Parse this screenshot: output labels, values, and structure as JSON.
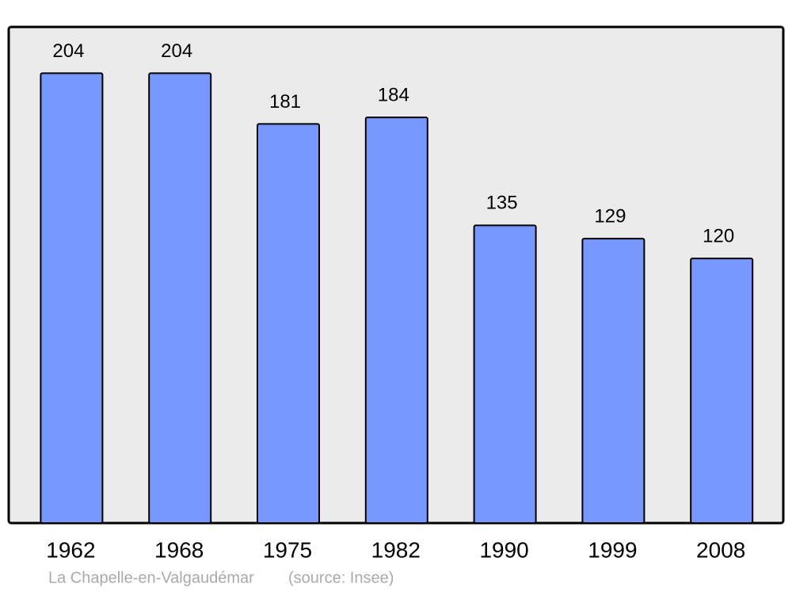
{
  "chart_data": {
    "type": "bar",
    "categories": [
      "1962",
      "1968",
      "1975",
      "1982",
      "1990",
      "1999",
      "2008"
    ],
    "values": [
      204,
      204,
      181,
      184,
      135,
      129,
      120
    ],
    "color": "#7799ff",
    "background": "#ebebeb",
    "ylim": [
      0,
      225
    ],
    "caption": "La Chapelle-en-Valgaudémar",
    "source": "(source: Insee)"
  }
}
